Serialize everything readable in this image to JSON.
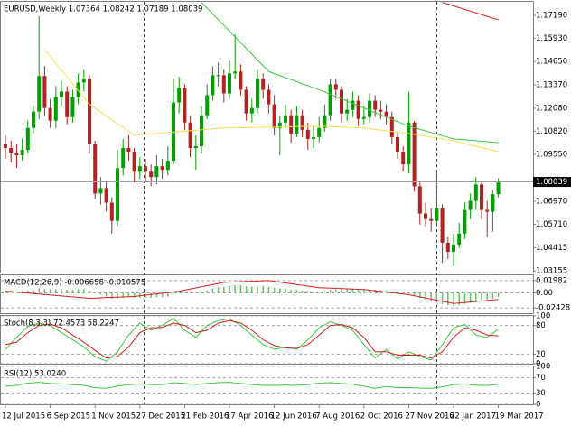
{
  "chart_data": [
    {
      "type": "candlestick",
      "title": "EURUSD,Weekly  1.07364 1.08242 1.07189 1.08039",
      "categories": [
        "12 Jul 2015",
        null,
        null,
        null,
        null,
        null,
        null,
        null,
        "6 Sep 2015",
        null,
        null,
        null,
        null,
        null,
        null,
        null,
        "1 Nov 2015",
        null,
        null,
        null,
        null,
        null,
        null,
        null,
        "27 Dec 2015",
        null,
        null,
        null,
        null,
        null,
        null,
        null,
        "21 Feb 2016",
        null,
        null,
        null,
        null,
        null,
        null,
        null,
        "17 Apr 2016",
        null,
        null,
        null,
        null,
        null,
        null,
        null,
        "12 Jun 2016",
        null,
        null,
        null,
        null,
        null,
        null,
        null,
        "7 Aug 2016",
        null,
        null,
        null,
        null,
        null,
        null,
        null,
        "2 Oct 2016",
        null,
        null,
        null,
        null,
        null,
        null,
        null,
        "27 Nov 2016",
        null,
        null,
        null,
        null,
        null,
        null,
        null,
        "22 Jan 2017",
        null,
        null,
        null,
        null,
        null,
        null,
        null,
        "19 Mar 2017"
      ],
      "open": [
        1.101,
        1.099,
        1.0965,
        1.095,
        1.098,
        1.11,
        1.119,
        1.1385,
        1.121,
        1.114,
        1.127,
        1.13,
        1.116,
        1.127,
        1.135,
        1.137,
        1.101,
        1.074,
        1.077,
        1.069,
        1.059,
        1.088,
        1.099,
        1.097,
        1.086,
        1.089,
        1.086,
        1.083,
        1.089,
        1.087,
        1.092,
        1.124,
        1.132,
        1.113,
        1.099,
        1.1,
        1.117,
        1.128,
        1.139,
        1.139,
        1.129,
        1.14,
        1.141,
        1.131,
        1.118,
        1.121,
        1.137,
        1.131,
        1.123,
        1.11,
        1.113,
        1.117,
        1.107,
        1.117,
        1.109,
        1.104,
        1.105,
        1.11,
        1.117,
        1.134,
        1.131,
        1.118,
        1.12,
        1.125,
        1.115,
        1.116,
        1.125,
        1.12,
        1.119,
        1.116,
        1.105,
        1.097,
        1.09,
        1.113,
        1.078,
        1.063,
        1.06,
        1.059,
        1.066,
        1.047,
        1.042,
        1.046,
        1.052,
        1.065,
        1.07,
        1.079,
        1.065,
        1.064,
        1.07364
      ],
      "high": [
        1.106,
        1.103,
        1.101,
        1.104,
        1.114,
        1.122,
        1.1714,
        1.144,
        1.126,
        1.133,
        1.136,
        1.133,
        1.131,
        1.14,
        1.142,
        1.139,
        1.103,
        1.083,
        1.081,
        1.072,
        1.098,
        1.104,
        1.106,
        1.099,
        1.094,
        1.093,
        1.09,
        1.095,
        1.093,
        1.1,
        1.137,
        1.138,
        1.134,
        1.117,
        1.106,
        1.122,
        1.134,
        1.144,
        1.146,
        1.142,
        1.147,
        1.1615,
        1.145,
        1.133,
        1.126,
        1.142,
        1.14,
        1.134,
        1.128,
        1.117,
        1.123,
        1.12,
        1.122,
        1.12,
        1.113,
        1.111,
        1.116,
        1.123,
        1.137,
        1.137,
        1.133,
        1.126,
        1.13,
        1.128,
        1.122,
        1.129,
        1.128,
        1.125,
        1.123,
        1.119,
        1.108,
        1.1,
        1.13,
        1.114,
        1.08,
        1.069,
        1.066,
        1.087,
        1.068,
        1.05,
        1.052,
        1.058,
        1.069,
        1.074,
        1.083,
        1.081,
        1.07,
        1.076,
        1.08242
      ],
      "low": [
        1.093,
        1.091,
        1.088,
        1.092,
        1.096,
        1.107,
        1.115,
        1.117,
        1.11,
        1.11,
        1.122,
        1.112,
        1.113,
        1.123,
        1.13,
        1.096,
        1.071,
        1.068,
        1.064,
        1.052,
        1.056,
        1.084,
        1.092,
        1.08,
        1.082,
        1.081,
        1.078,
        1.079,
        1.082,
        1.084,
        1.09,
        1.118,
        1.109,
        1.094,
        1.087,
        1.096,
        1.115,
        1.125,
        1.133,
        1.124,
        1.126,
        1.137,
        1.128,
        1.114,
        1.113,
        1.118,
        1.126,
        1.118,
        1.106,
        1.095,
        1.11,
        1.102,
        1.105,
        1.105,
        1.098,
        1.099,
        1.102,
        1.108,
        1.114,
        1.126,
        1.113,
        1.114,
        1.116,
        1.111,
        1.112,
        1.113,
        1.116,
        1.115,
        1.112,
        1.101,
        1.093,
        1.086,
        1.085,
        1.075,
        1.057,
        1.056,
        1.053,
        1.057,
        1.036,
        1.038,
        1.034,
        1.044,
        1.049,
        1.06,
        1.065,
        1.06,
        1.05,
        1.053,
        1.07189
      ],
      "close": [
        1.099,
        1.0965,
        1.095,
        1.098,
        1.11,
        1.119,
        1.1385,
        1.121,
        1.114,
        1.127,
        1.13,
        1.116,
        1.127,
        1.135,
        1.137,
        1.101,
        1.074,
        1.077,
        1.069,
        1.059,
        1.088,
        1.099,
        1.097,
        1.086,
        1.089,
        1.086,
        1.083,
        1.089,
        1.087,
        1.092,
        1.124,
        1.132,
        1.113,
        1.099,
        1.1,
        1.117,
        1.128,
        1.139,
        1.139,
        1.129,
        1.14,
        1.141,
        1.131,
        1.118,
        1.121,
        1.137,
        1.131,
        1.123,
        1.11,
        1.113,
        1.117,
        1.107,
        1.117,
        1.109,
        1.104,
        1.105,
        1.11,
        1.117,
        1.134,
        1.131,
        1.118,
        1.12,
        1.125,
        1.115,
        1.116,
        1.125,
        1.12,
        1.119,
        1.116,
        1.105,
        1.097,
        1.09,
        1.113,
        1.078,
        1.063,
        1.06,
        1.059,
        1.066,
        1.047,
        1.042,
        1.046,
        1.052,
        1.065,
        1.07,
        1.079,
        1.065,
        1.064,
        1.0736,
        1.08039
      ],
      "up_color": "#00a000",
      "down_color": "#b22222",
      "series": [
        {
          "color": "#f5e050",
          "x": [
            7,
            15,
            23,
            31,
            39,
            56,
            64,
            72,
            80,
            88
          ],
          "values": [
            1.153,
            1.123,
            1.106,
            1.108,
            1.11,
            1.111,
            1.11,
            1.107,
            1.103,
            1.097
          ]
        },
        {
          "color": "#3cc83c",
          "x": [
            35,
            41,
            47,
            56,
            64,
            72,
            80,
            88
          ],
          "values": [
            1.179,
            1.16,
            1.141,
            1.131,
            1.121,
            1.111,
            1.104,
            1.102
          ]
        },
        {
          "color": "#d42020",
          "x": [
            78,
            88
          ],
          "values": [
            1.179,
            1.1694
          ]
        }
      ],
      "ylim": [
        1.0306,
        1.1793
      ],
      "yticks": [
        {
          "value": 1.1719,
          "label": "1.17190"
        },
        {
          "value": 1.1593,
          "label": "1.15930"
        },
        {
          "value": 1.1465,
          "label": "1.14650"
        },
        {
          "value": 1.1337,
          "label": "1.13370"
        },
        {
          "value": 1.1208,
          "label": "1.12080"
        },
        {
          "value": 1.1082,
          "label": "1.10820"
        },
        {
          "value": 1.0955,
          "label": "1.09550"
        },
        {
          "value": 1.0697,
          "label": "1.06970"
        },
        {
          "value": 1.0571,
          "label": "1.05710"
        },
        1.04415,
        1.03155
      ],
      "grid": false
    },
    {
      "type": "macd",
      "title": "MACD(12,26,9) -0.006658 -0.010575",
      "color": "#66c266",
      "values": [
        0.004,
        0.004,
        0.003,
        0.003,
        0.004,
        0.005,
        0.007,
        0.007,
        0.006,
        0.006,
        0.006,
        0.005,
        0.005,
        0.006,
        0.006,
        0.004,
        0.0,
        -0.003,
        -0.006,
        -0.009,
        -0.009,
        -0.008,
        -0.007,
        -0.008,
        -0.008,
        -0.008,
        -0.008,
        -0.007,
        -0.007,
        -0.006,
        -0.002,
        0.001,
        0.001,
        0.0,
        0.0,
        0.002,
        0.004,
        0.007,
        0.009,
        0.01,
        0.011,
        0.012,
        0.012,
        0.011,
        0.01,
        0.011,
        0.011,
        0.01,
        0.008,
        0.007,
        0.007,
        0.005,
        0.005,
        0.004,
        0.003,
        0.002,
        0.002,
        0.003,
        0.005,
        0.006,
        0.006,
        0.006,
        0.006,
        0.005,
        0.005,
        0.005,
        0.005,
        0.005,
        0.004,
        0.002,
        0.0,
        -0.002,
        -0.001,
        -0.004,
        -0.008,
        -0.011,
        -0.014,
        -0.015,
        -0.018,
        -0.02,
        -0.021,
        -0.02,
        -0.018,
        -0.016,
        -0.013,
        -0.012,
        -0.011,
        -0.009,
        -0.006658
      ],
      "series": [
        {
          "color": "#d42020",
          "x": [
            0,
            15,
            23,
            31,
            39,
            47,
            56,
            64,
            72,
            80,
            88
          ],
          "values": [
            0.0027,
            -0.0087,
            -0.0058,
            0.0027,
            0.0169,
            0.0198,
            0.0084,
            0.0055,
            -0.003,
            -0.0172,
            -0.010575
          ]
        }
      ],
      "ylim": [
        -0.0328,
        0.0284
      ],
      "yticks": [
        0.01982,
        {
          "value": 0,
          "label": "0.00"
        },
        -0.02428
      ],
      "grid": true
    },
    {
      "type": "line",
      "title": "Stoch(8,3,3) 72.4573 58.2247",
      "x": [
        0,
        2,
        4,
        6,
        8,
        10,
        12,
        14,
        16,
        18,
        20,
        22,
        24,
        26,
        28,
        30,
        32,
        34,
        36,
        38,
        40,
        42,
        44,
        46,
        48,
        50,
        52,
        54,
        56,
        58,
        60,
        62,
        64,
        66,
        68,
        70,
        72,
        74,
        76,
        78,
        80,
        82,
        84,
        86,
        88
      ],
      "series": [
        {
          "color": "#3cc83c",
          "values": [
            30,
            55,
            78,
            85,
            80,
            65,
            50,
            35,
            15,
            5,
            25,
            60,
            85,
            70,
            80,
            95,
            70,
            55,
            80,
            90,
            94,
            80,
            60,
            40,
            30,
            35,
            30,
            50,
            75,
            88,
            80,
            70,
            40,
            12,
            30,
            10,
            25,
            15,
            8,
            40,
            75,
            82,
            60,
            55,
            72.4573
          ]
        },
        {
          "color": "#d42020",
          "values": [
            40,
            45,
            65,
            80,
            83,
            75,
            60,
            45,
            28,
            12,
            15,
            35,
            65,
            75,
            76,
            85,
            80,
            65,
            70,
            85,
            90,
            85,
            70,
            50,
            38,
            33,
            32,
            40,
            60,
            80,
            82,
            75,
            55,
            25,
            25,
            18,
            18,
            18,
            12,
            25,
            55,
            75,
            70,
            60,
            58.2247
          ]
        }
      ],
      "ylim": [
        0,
        100
      ],
      "yticks": [
        100,
        80,
        20,
        0
      ],
      "grid": true
    },
    {
      "type": "line",
      "title": "RSI(12) 53.0240",
      "x": [
        0,
        2,
        4,
        6,
        8,
        10,
        12,
        14,
        16,
        18,
        20,
        22,
        24,
        26,
        28,
        30,
        32,
        34,
        36,
        38,
        40,
        42,
        44,
        46,
        48,
        50,
        52,
        54,
        56,
        58,
        60,
        62,
        64,
        66,
        68,
        70,
        72,
        74,
        76,
        78,
        80,
        82,
        84,
        86,
        88
      ],
      "series": [
        {
          "color": "#3cc83c",
          "values": [
            48,
            50,
            56,
            58,
            55,
            54,
            52,
            50,
            44,
            42,
            48,
            52,
            54,
            52,
            52,
            57,
            55,
            52,
            55,
            57,
            58,
            55,
            52,
            50,
            50,
            51,
            50,
            52,
            56,
            57,
            55,
            53,
            48,
            42,
            47,
            44,
            44,
            43,
            42,
            46,
            52,
            54,
            50,
            50,
            53.024
          ]
        }
      ],
      "ylim": [
        0,
        100
      ],
      "yticks": [
        100,
        70,
        30,
        0
      ],
      "grid": true
    }
  ]
}
